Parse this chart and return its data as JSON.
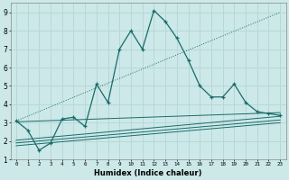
{
  "xlabel": "Humidex (Indice chaleur)",
  "background_color": "#cce8e8",
  "grid_color": "#b8d8d8",
  "line_color": "#1a6b6b",
  "xlim": [
    -0.5,
    23.5
  ],
  "ylim": [
    1,
    9.5
  ],
  "xticks": [
    0,
    1,
    2,
    3,
    4,
    5,
    6,
    7,
    8,
    9,
    10,
    11,
    12,
    13,
    14,
    15,
    16,
    17,
    18,
    19,
    20,
    21,
    22,
    23
  ],
  "yticks": [
    1,
    2,
    3,
    4,
    5,
    6,
    7,
    8,
    9
  ],
  "main_x": [
    0,
    1,
    2,
    3,
    4,
    5,
    6,
    7,
    8,
    9,
    10,
    11,
    12,
    13,
    14,
    15,
    16,
    17,
    18,
    19,
    20,
    21,
    22,
    23
  ],
  "main_y": [
    3.1,
    2.6,
    1.5,
    1.9,
    3.2,
    3.3,
    2.8,
    5.1,
    4.1,
    7.0,
    8.0,
    7.0,
    9.1,
    8.5,
    7.6,
    6.4,
    5.0,
    4.4,
    4.4,
    5.1,
    4.1,
    3.6,
    3.5,
    3.4
  ],
  "diag_lines": [
    {
      "x": [
        0,
        23
      ],
      "y": [
        3.05,
        3.55
      ],
      "style": "solid"
    },
    {
      "x": [
        0,
        23
      ],
      "y": [
        2.05,
        3.35
      ],
      "style": "solid"
    },
    {
      "x": [
        0,
        23
      ],
      "y": [
        1.9,
        3.15
      ],
      "style": "solid"
    },
    {
      "x": [
        0,
        23
      ],
      "y": [
        1.75,
        3.0
      ],
      "style": "solid"
    }
  ],
  "dotted_line_x": [
    0,
    23
  ],
  "dotted_line_y": [
    3.1,
    9.0
  ]
}
